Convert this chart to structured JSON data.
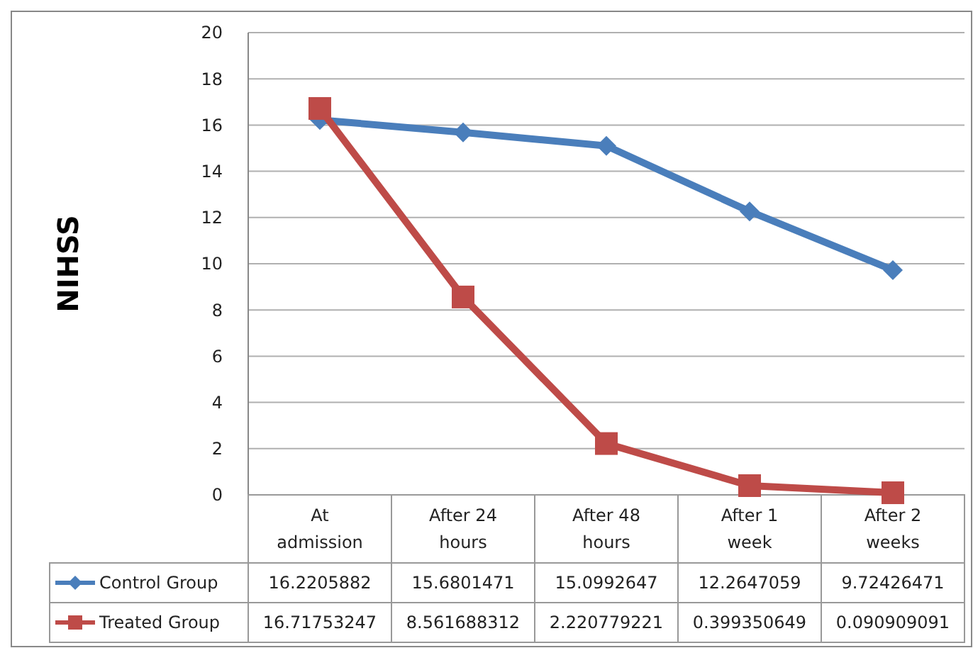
{
  "chart_data": {
    "type": "line",
    "ylabel": "NIHSS",
    "categories": [
      "At admission",
      "After 24 hours",
      "After 48 hours",
      "After 1 week",
      "After 2 weeks"
    ],
    "series": [
      {
        "name": "Control Group",
        "color": "#4a7ebb",
        "marker": "diamond",
        "values": [
          16.2205882,
          15.6801471,
          15.0992647,
          12.2647059,
          9.72426471
        ]
      },
      {
        "name": "Treated Group",
        "color": "#be4b48",
        "marker": "square",
        "values": [
          16.71753247,
          8.561688312,
          2.220779221,
          0.399350649,
          0.090909091
        ]
      }
    ],
    "ylim": [
      0,
      20
    ],
    "yticks": [
      0,
      2,
      4,
      6,
      8,
      10,
      12,
      14,
      16,
      18,
      20
    ],
    "grid": "y",
    "legend": "bottom",
    "data_labels": true
  }
}
